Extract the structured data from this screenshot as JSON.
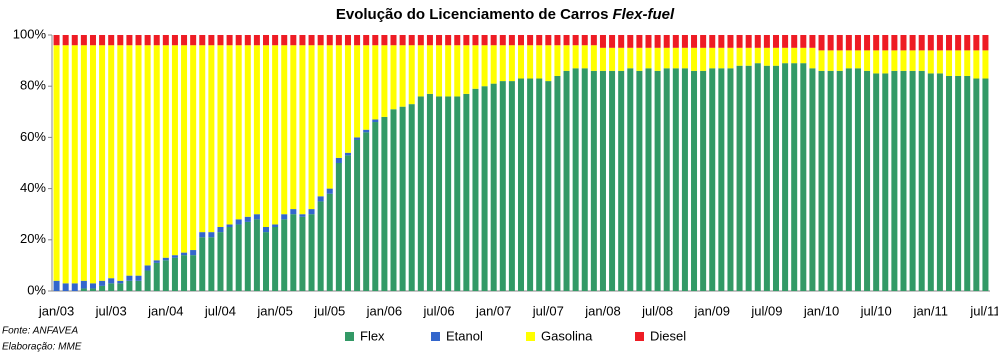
{
  "chart_data": {
    "type": "stacked_bar",
    "title": "Evolução do Licenciamento  de Carros",
    "title_italic": "Flex-fuel",
    "categories": [
      "jan/03",
      null,
      null,
      null,
      null,
      null,
      "jul/03",
      null,
      null,
      null,
      null,
      null,
      "jan/04",
      null,
      null,
      null,
      null,
      null,
      "jul/04",
      null,
      null,
      null,
      null,
      null,
      "jan/05",
      null,
      null,
      null,
      null,
      null,
      "jul/05",
      null,
      null,
      null,
      null,
      null,
      "jan/06",
      null,
      null,
      null,
      null,
      null,
      "jul/06",
      null,
      null,
      null,
      null,
      null,
      "jan/07",
      null,
      null,
      null,
      null,
      null,
      "jul/07",
      null,
      null,
      null,
      null,
      null,
      "jan/08",
      null,
      null,
      null,
      null,
      null,
      "jul/08",
      null,
      null,
      null,
      null,
      null,
      "jan/09",
      null,
      null,
      null,
      null,
      null,
      "jul/09",
      null,
      null,
      null,
      null,
      null,
      "jan/10",
      null,
      null,
      null,
      null,
      null,
      "jul/10",
      null,
      null,
      null,
      null,
      null,
      "jan/11",
      null,
      null,
      null,
      null,
      null,
      "jul/11"
    ],
    "series": [
      {
        "name": "Flex",
        "color": "#339966",
        "values": [
          0,
          0,
          0,
          1,
          1,
          2,
          3,
          3,
          4,
          4,
          8,
          11,
          12,
          13,
          14,
          14,
          21,
          21,
          23,
          25,
          26,
          27,
          28,
          23,
          25,
          28,
          30,
          29,
          30,
          35,
          38,
          50,
          53,
          59,
          62,
          66,
          68,
          71,
          72,
          73,
          76,
          77,
          76,
          76,
          76,
          77,
          79,
          80,
          81,
          82,
          82,
          83,
          83,
          83,
          82,
          84,
          86,
          87,
          87,
          86,
          86,
          86,
          86,
          87,
          86,
          87,
          86,
          87,
          87,
          87,
          86,
          86,
          87,
          87,
          87,
          88,
          88,
          89,
          88,
          88,
          89,
          89,
          89,
          87,
          86,
          86,
          86,
          87,
          87,
          86,
          85,
          85,
          86,
          86,
          86,
          86,
          85,
          85,
          84,
          84,
          84,
          83,
          83
        ]
      },
      {
        "name": "Etanol",
        "color": "#3366cc",
        "values": [
          4,
          3,
          3,
          3,
          2,
          2,
          2,
          1,
          2,
          2,
          2,
          1,
          1,
          1,
          1,
          2,
          2,
          2,
          2,
          1,
          2,
          2,
          2,
          2,
          1,
          2,
          2,
          1,
          2,
          2,
          2,
          2,
          1,
          1,
          1,
          1,
          0,
          0,
          0,
          0,
          0,
          0,
          0,
          0,
          0,
          0,
          0,
          0,
          0,
          0,
          0,
          0,
          0,
          0,
          0,
          0,
          0,
          0,
          0,
          0,
          0,
          0,
          0,
          0,
          0,
          0,
          0,
          0,
          0,
          0,
          0,
          0,
          0,
          0,
          0,
          0,
          0,
          0,
          0,
          0,
          0,
          0,
          0,
          0,
          0,
          0,
          0,
          0,
          0,
          0,
          0,
          0,
          0,
          0,
          0,
          0,
          0,
          0,
          0,
          0,
          0,
          0,
          0
        ]
      },
      {
        "name": "Gasolina",
        "color": "#ffff00",
        "values": [
          92,
          93,
          93,
          92,
          93,
          92,
          91,
          92,
          90,
          90,
          86,
          84,
          83,
          82,
          81,
          80,
          73,
          73,
          71,
          70,
          68,
          67,
          66,
          71,
          70,
          66,
          64,
          66,
          64,
          59,
          56,
          44,
          42,
          36,
          33,
          29,
          28,
          25,
          24,
          23,
          20,
          19,
          20,
          20,
          20,
          19,
          17,
          16,
          15,
          14,
          14,
          13,
          13,
          13,
          14,
          12,
          10,
          9,
          9,
          10,
          9,
          9,
          9,
          8,
          9,
          8,
          9,
          8,
          8,
          8,
          9,
          9,
          8,
          8,
          8,
          7,
          7,
          6,
          7,
          7,
          6,
          6,
          6,
          8,
          8,
          8,
          8,
          7,
          7,
          8,
          9,
          9,
          8,
          8,
          8,
          8,
          9,
          9,
          10,
          10,
          10,
          11,
          11
        ]
      },
      {
        "name": "Diesel",
        "color": "#ee1c24",
        "values": [
          4,
          4,
          4,
          4,
          4,
          4,
          4,
          4,
          4,
          4,
          4,
          4,
          4,
          4,
          4,
          4,
          4,
          4,
          4,
          4,
          4,
          4,
          4,
          4,
          4,
          4,
          4,
          4,
          4,
          4,
          4,
          4,
          4,
          4,
          4,
          4,
          4,
          4,
          4,
          4,
          4,
          4,
          4,
          4,
          4,
          4,
          4,
          4,
          4,
          4,
          4,
          4,
          4,
          4,
          4,
          4,
          4,
          4,
          4,
          4,
          5,
          5,
          5,
          5,
          5,
          5,
          5,
          5,
          5,
          5,
          5,
          5,
          5,
          5,
          5,
          5,
          5,
          5,
          5,
          5,
          5,
          5,
          5,
          5,
          6,
          6,
          6,
          6,
          6,
          6,
          6,
          6,
          6,
          6,
          6,
          6,
          6,
          6,
          6,
          6,
          6,
          6,
          6
        ]
      }
    ],
    "ylim": [
      0,
      100
    ],
    "yticks": [
      {
        "value": 0,
        "label": "0%"
      },
      {
        "value": 20,
        "label": "20%"
      },
      {
        "value": 40,
        "label": "40%"
      },
      {
        "value": 60,
        "label": "60%"
      },
      {
        "value": 80,
        "label": "80%"
      },
      {
        "value": 100,
        "label": "100%"
      }
    ],
    "legend": "bottom",
    "source": "Fonte: ANFAVEA",
    "credit": "Elaboração: MME"
  }
}
